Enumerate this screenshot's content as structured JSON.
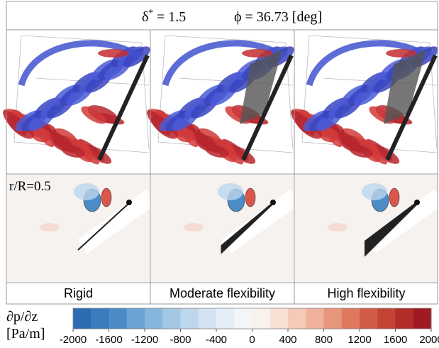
{
  "header": {
    "delta_symbol": "δ",
    "delta_superscript": "*",
    "delta_value": " = 1.5",
    "phi_text": "ϕ = 36.73 [deg]"
  },
  "section_label": "r/R=0.5",
  "columns": [
    "Rigid",
    "Moderate flexibility",
    "High flexibility"
  ],
  "colorbar": {
    "label_symbol": "∂p/∂z",
    "label_unit": "[Pa/m]",
    "ticks": [
      -2000,
      -1600,
      -1200,
      -800,
      -400,
      0,
      400,
      800,
      1200,
      1600,
      2000
    ],
    "colors": [
      "#2b6cb0",
      "#3a7cbd",
      "#4b8cc8",
      "#6aa3d3",
      "#86b6dc",
      "#a3c8e4",
      "#bdd7ec",
      "#d3e3f1",
      "#e5eef6",
      "#f3f5f7",
      "#f8f1ec",
      "#f8e0d3",
      "#f5cbb8",
      "#f0b29a",
      "#e8967b",
      "#de795f",
      "#d15d48",
      "#c24436",
      "#b22c2a",
      "#a01a23"
    ]
  }
}
